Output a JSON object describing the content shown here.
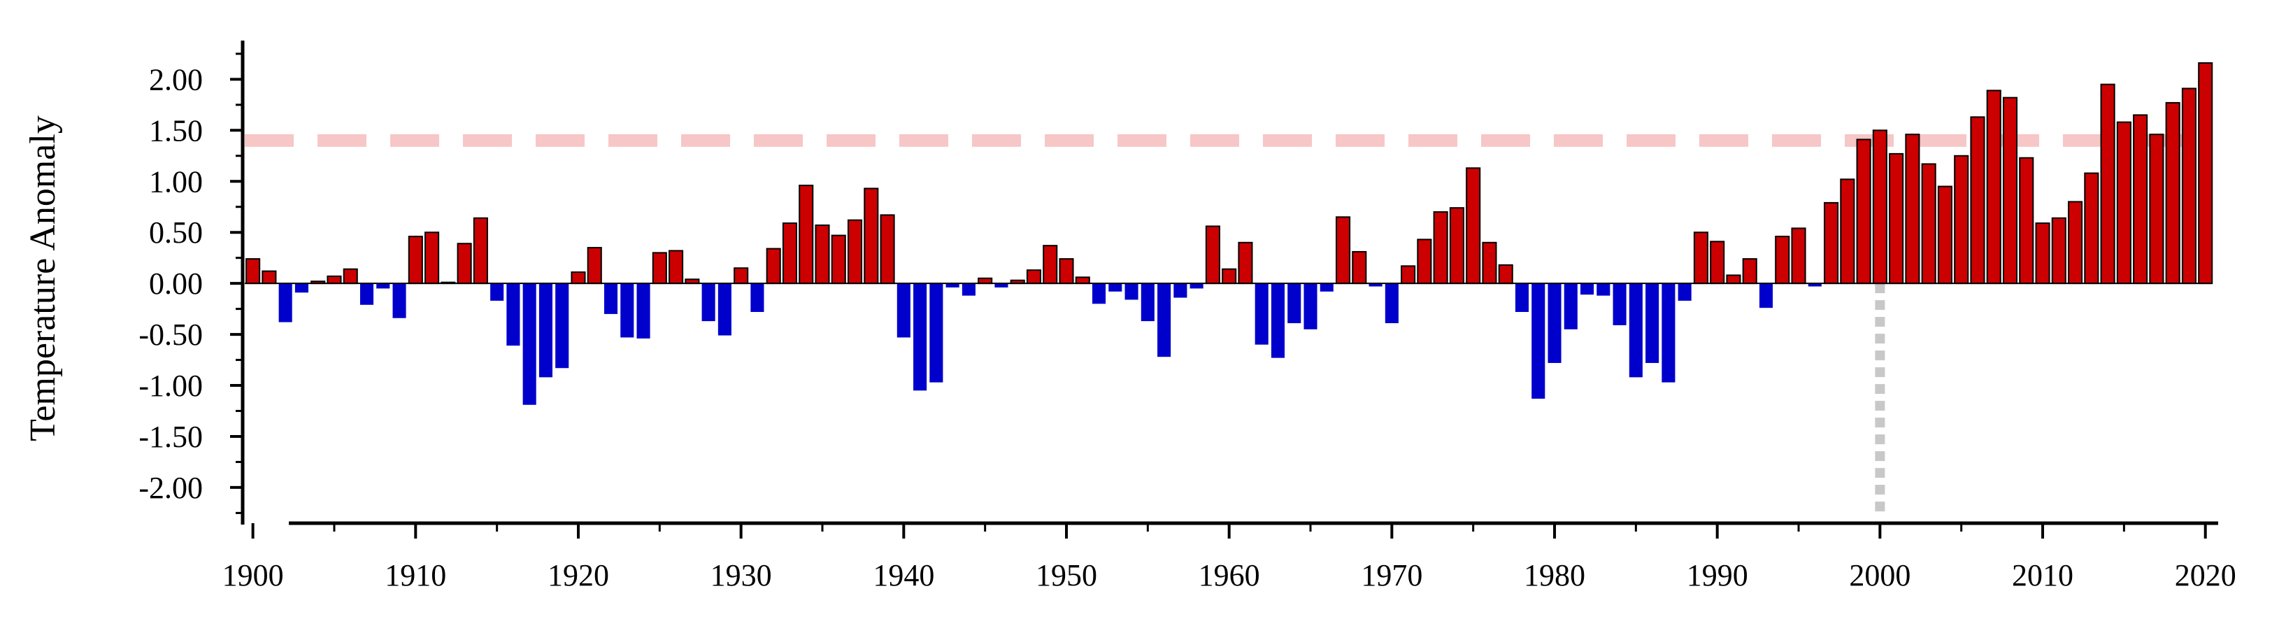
{
  "chart_data": {
    "type": "bar",
    "title": "",
    "xlabel": "",
    "ylabel": "Temperature Anomaly",
    "ylim": [
      -2.35,
      2.4
    ],
    "xlim": [
      1899.5,
      2020.7
    ],
    "grid": false,
    "legend": "none",
    "positive_color": "#cc0000",
    "negative_color": "#0000cc",
    "bar_outline_color": "#000000",
    "threshold_line": {
      "y": 1.4,
      "color": "#f7c6c6",
      "style": "dashed"
    },
    "marker_line": {
      "x": 2000,
      "color": "#c8c8c8",
      "style": "dotted"
    },
    "x_ticks": [
      1900,
      1910,
      1920,
      1930,
      1940,
      1950,
      1960,
      1970,
      1980,
      1990,
      2000,
      2010,
      2020
    ],
    "x_tick_labels": [
      "1900",
      "1910",
      "1920",
      "1930",
      "1940",
      "1950",
      "1960",
      "1970",
      "1980",
      "1990",
      "2000",
      "2010",
      "2020"
    ],
    "y_ticks": [
      2,
      1.5,
      1,
      0.5,
      0,
      -0.5,
      -1,
      -1.5,
      -2
    ],
    "y_tick_labels": [
      "2.00",
      "1.50",
      "1.00",
      "0.50",
      "0.00",
      "-0.50",
      "-1.00",
      "-1.50",
      "-2.00"
    ],
    "years": [
      1900,
      1901,
      1902,
      1903,
      1904,
      1905,
      1906,
      1907,
      1908,
      1909,
      1910,
      1911,
      1912,
      1913,
      1914,
      1915,
      1916,
      1917,
      1918,
      1919,
      1920,
      1921,
      1922,
      1923,
      1924,
      1925,
      1926,
      1927,
      1928,
      1929,
      1930,
      1931,
      1932,
      1933,
      1934,
      1935,
      1936,
      1937,
      1938,
      1939,
      1940,
      1941,
      1942,
      1943,
      1944,
      1945,
      1946,
      1947,
      1948,
      1949,
      1950,
      1951,
      1952,
      1953,
      1954,
      1955,
      1956,
      1957,
      1958,
      1959,
      1960,
      1961,
      1962,
      1963,
      1964,
      1965,
      1966,
      1967,
      1968,
      1969,
      1970,
      1971,
      1972,
      1973,
      1974,
      1975,
      1976,
      1977,
      1978,
      1979,
      1980,
      1981,
      1982,
      1983,
      1984,
      1985,
      1986,
      1987,
      1988,
      1989,
      1990,
      1991,
      1992,
      1993,
      1994,
      1995,
      1996,
      1997,
      1998,
      1999,
      2000,
      2001,
      2002,
      2003,
      2004,
      2005,
      2006,
      2007,
      2008,
      2009,
      2010,
      2011,
      2012,
      2013,
      2014,
      2015,
      2016,
      2017,
      2018,
      2019,
      2020
    ],
    "values": [
      0.24,
      0.12,
      -0.38,
      -0.09,
      0.02,
      0.07,
      0.14,
      -0.21,
      -0.05,
      -0.34,
      0.46,
      0.5,
      0.01,
      0.39,
      0.64,
      -0.17,
      -0.61,
      -1.19,
      -0.92,
      -0.83,
      0.11,
      0.35,
      -0.3,
      -0.53,
      -0.54,
      0.3,
      0.32,
      0.04,
      -0.37,
      -0.51,
      0.15,
      -0.28,
      0.34,
      0.59,
      0.96,
      0.57,
      0.47,
      0.62,
      0.93,
      0.67,
      -0.53,
      -1.05,
      -0.97,
      -0.04,
      -0.12,
      0.05,
      -0.04,
      0.03,
      0.13,
      0.37,
      0.24,
      0.06,
      -0.2,
      -0.08,
      -0.16,
      -0.37,
      -0.72,
      -0.14,
      -0.05,
      0.56,
      0.14,
      0.4,
      -0.6,
      -0.73,
      -0.39,
      -0.45,
      -0.08,
      0.65,
      0.31,
      -0.03,
      -0.39,
      0.17,
      0.43,
      0.7,
      0.74,
      1.13,
      0.4,
      0.18,
      -0.28,
      -1.13,
      -0.78,
      -0.45,
      -0.11,
      -0.12,
      -0.41,
      -0.92,
      -0.78,
      -0.97,
      -0.17,
      0.5,
      0.41,
      0.08,
      0.24,
      -0.24,
      0.46,
      0.54,
      -0.03,
      0.79,
      1.02,
      1.41,
      1.5,
      1.27,
      1.46,
      1.17,
      0.95,
      1.25,
      1.63,
      1.89,
      1.82,
      1.23,
      0.59,
      0.64,
      0.8,
      1.08,
      1.95,
      1.58,
      1.65,
      1.46,
      1.77,
      1.91,
      2.16
    ]
  }
}
